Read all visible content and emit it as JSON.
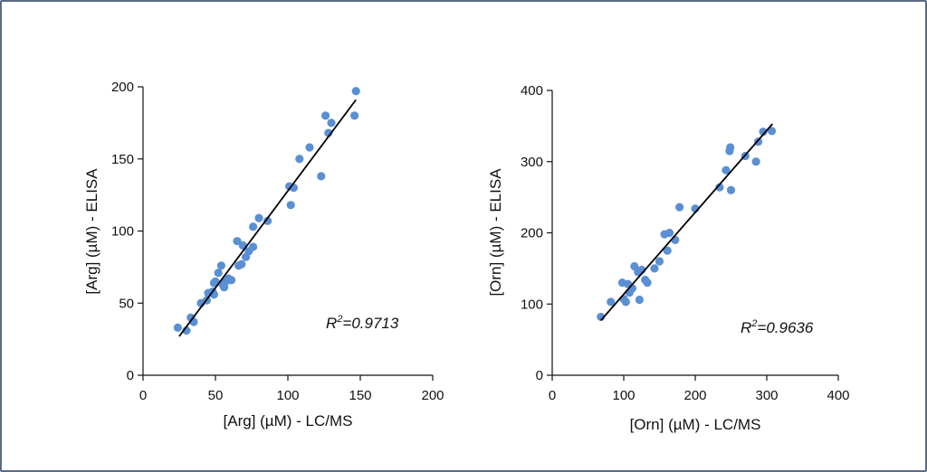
{
  "chart_data": [
    {
      "type": "scatter",
      "xlabel": "[Arg] (µM) - LC/MS",
      "ylabel": "[Arg] (µM) - ELISA",
      "xlim": [
        0,
        200
      ],
      "ylim": [
        0,
        200
      ],
      "xticks": [
        0,
        50,
        100,
        150,
        200
      ],
      "yticks": [
        0,
        50,
        100,
        150,
        200
      ],
      "annotation": {
        "prefix": "R",
        "sup": "2",
        "text": "=0.9713"
      },
      "fit_line": {
        "x": [
          25,
          147
        ],
        "y": [
          27,
          191
        ]
      },
      "points": [
        {
          "x": 24,
          "y": 33
        },
        {
          "x": 30,
          "y": 31
        },
        {
          "x": 33,
          "y": 40
        },
        {
          "x": 35,
          "y": 37
        },
        {
          "x": 40,
          "y": 50
        },
        {
          "x": 44,
          "y": 52
        },
        {
          "x": 45,
          "y": 57
        },
        {
          "x": 48,
          "y": 58
        },
        {
          "x": 49,
          "y": 56
        },
        {
          "x": 49,
          "y": 64
        },
        {
          "x": 50,
          "y": 65
        },
        {
          "x": 52,
          "y": 71
        },
        {
          "x": 54,
          "y": 76
        },
        {
          "x": 55,
          "y": 63
        },
        {
          "x": 56,
          "y": 61
        },
        {
          "x": 57,
          "y": 65
        },
        {
          "x": 59,
          "y": 67
        },
        {
          "x": 61,
          "y": 66
        },
        {
          "x": 65,
          "y": 93
        },
        {
          "x": 66,
          "y": 76
        },
        {
          "x": 68,
          "y": 77
        },
        {
          "x": 69,
          "y": 90
        },
        {
          "x": 71,
          "y": 82
        },
        {
          "x": 73,
          "y": 86
        },
        {
          "x": 76,
          "y": 89
        },
        {
          "x": 76,
          "y": 103
        },
        {
          "x": 80,
          "y": 109
        },
        {
          "x": 86,
          "y": 107
        },
        {
          "x": 101,
          "y": 131
        },
        {
          "x": 102,
          "y": 118
        },
        {
          "x": 104,
          "y": 130
        },
        {
          "x": 108,
          "y": 150
        },
        {
          "x": 115,
          "y": 158
        },
        {
          "x": 123,
          "y": 138
        },
        {
          "x": 126,
          "y": 180
        },
        {
          "x": 128,
          "y": 168
        },
        {
          "x": 130,
          "y": 175
        },
        {
          "x": 146,
          "y": 180
        },
        {
          "x": 147,
          "y": 197
        }
      ]
    },
    {
      "type": "scatter",
      "xlabel": "[Orn] (µM) - LC/MS",
      "ylabel": "[Orn] (µM) - ELISA",
      "xlim": [
        0,
        400
      ],
      "ylim": [
        0,
        400
      ],
      "xticks": [
        0,
        100,
        200,
        300,
        400
      ],
      "yticks": [
        0,
        100,
        200,
        300,
        400
      ],
      "annotation": {
        "prefix": "R",
        "sup": "2",
        "text": "=0.9636"
      },
      "fit_line": {
        "x": [
          68,
          308
        ],
        "y": [
          77,
          353
        ]
      },
      "points": [
        {
          "x": 68,
          "y": 82
        },
        {
          "x": 82,
          "y": 103
        },
        {
          "x": 98,
          "y": 130
        },
        {
          "x": 100,
          "y": 107
        },
        {
          "x": 103,
          "y": 103
        },
        {
          "x": 106,
          "y": 128
        },
        {
          "x": 108,
          "y": 116
        },
        {
          "x": 112,
          "y": 122
        },
        {
          "x": 115,
          "y": 153
        },
        {
          "x": 120,
          "y": 145
        },
        {
          "x": 122,
          "y": 106
        },
        {
          "x": 125,
          "y": 148
        },
        {
          "x": 130,
          "y": 134
        },
        {
          "x": 133,
          "y": 130
        },
        {
          "x": 143,
          "y": 150
        },
        {
          "x": 150,
          "y": 160
        },
        {
          "x": 157,
          "y": 198
        },
        {
          "x": 161,
          "y": 175
        },
        {
          "x": 164,
          "y": 200
        },
        {
          "x": 172,
          "y": 190
        },
        {
          "x": 178,
          "y": 236
        },
        {
          "x": 200,
          "y": 234
        },
        {
          "x": 234,
          "y": 264
        },
        {
          "x": 243,
          "y": 288
        },
        {
          "x": 248,
          "y": 315
        },
        {
          "x": 249,
          "y": 320
        },
        {
          "x": 250,
          "y": 260
        },
        {
          "x": 270,
          "y": 308
        },
        {
          "x": 285,
          "y": 300
        },
        {
          "x": 288,
          "y": 328
        },
        {
          "x": 295,
          "y": 342
        },
        {
          "x": 307,
          "y": 343
        }
      ]
    }
  ]
}
